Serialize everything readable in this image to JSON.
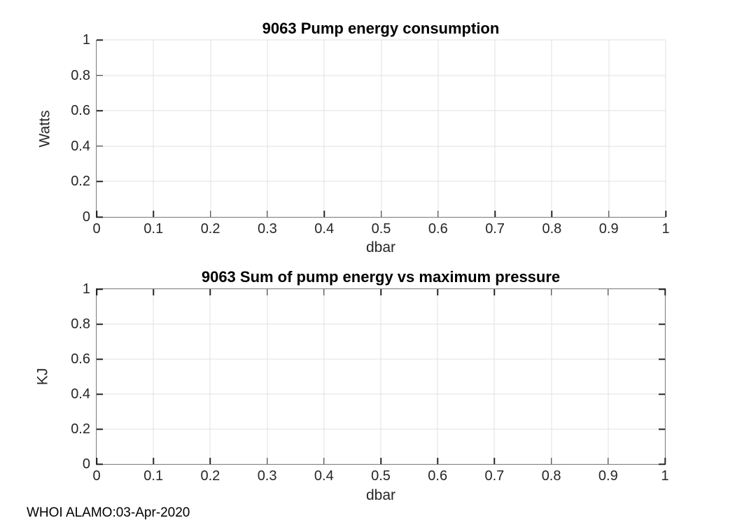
{
  "window": {
    "background": "#ffffff"
  },
  "colors": {
    "axis": "#262626",
    "grid": "#e0e0e0",
    "text": "#262626",
    "title": "#000000"
  },
  "footer": {
    "text": "WHOI ALAMO:03-Apr-2020"
  },
  "chart_data": [
    {
      "type": "line",
      "title": "9063 Pump energy consumption",
      "xlabel": "dbar",
      "ylabel": "Watts",
      "xlim": [
        0,
        1
      ],
      "ylim": [
        0,
        1
      ],
      "xticks": [
        0,
        0.1,
        0.2,
        0.3,
        0.4,
        0.5,
        0.6,
        0.7,
        0.8,
        0.9,
        1
      ],
      "xtick_labels": [
        "0",
        "0.1",
        "0.2",
        "0.3",
        "0.4",
        "0.5",
        "0.6",
        "0.7",
        "0.8",
        "0.9",
        "1"
      ],
      "yticks": [
        0,
        0.2,
        0.4,
        0.6,
        0.8,
        1
      ],
      "ytick_labels": [
        "0",
        "0.2",
        "0.4",
        "0.6",
        "0.8",
        "1"
      ],
      "grid": true,
      "box": false,
      "legend": null,
      "series": []
    },
    {
      "type": "line",
      "title": "9063 Sum of pump energy vs maximum pressure",
      "xlabel": "dbar",
      "ylabel": "KJ",
      "xlim": [
        0,
        1
      ],
      "ylim": [
        0,
        1
      ],
      "xticks": [
        0,
        0.1,
        0.2,
        0.3,
        0.4,
        0.5,
        0.6,
        0.7,
        0.8,
        0.9,
        1
      ],
      "xtick_labels": [
        "0",
        "0.1",
        "0.2",
        "0.3",
        "0.4",
        "0.5",
        "0.6",
        "0.7",
        "0.8",
        "0.9",
        "1"
      ],
      "yticks": [
        0,
        0.2,
        0.4,
        0.6,
        0.8,
        1
      ],
      "ytick_labels": [
        "0",
        "0.2",
        "0.4",
        "0.6",
        "0.8",
        "1"
      ],
      "grid": true,
      "box": true,
      "legend": null,
      "series": []
    }
  ]
}
